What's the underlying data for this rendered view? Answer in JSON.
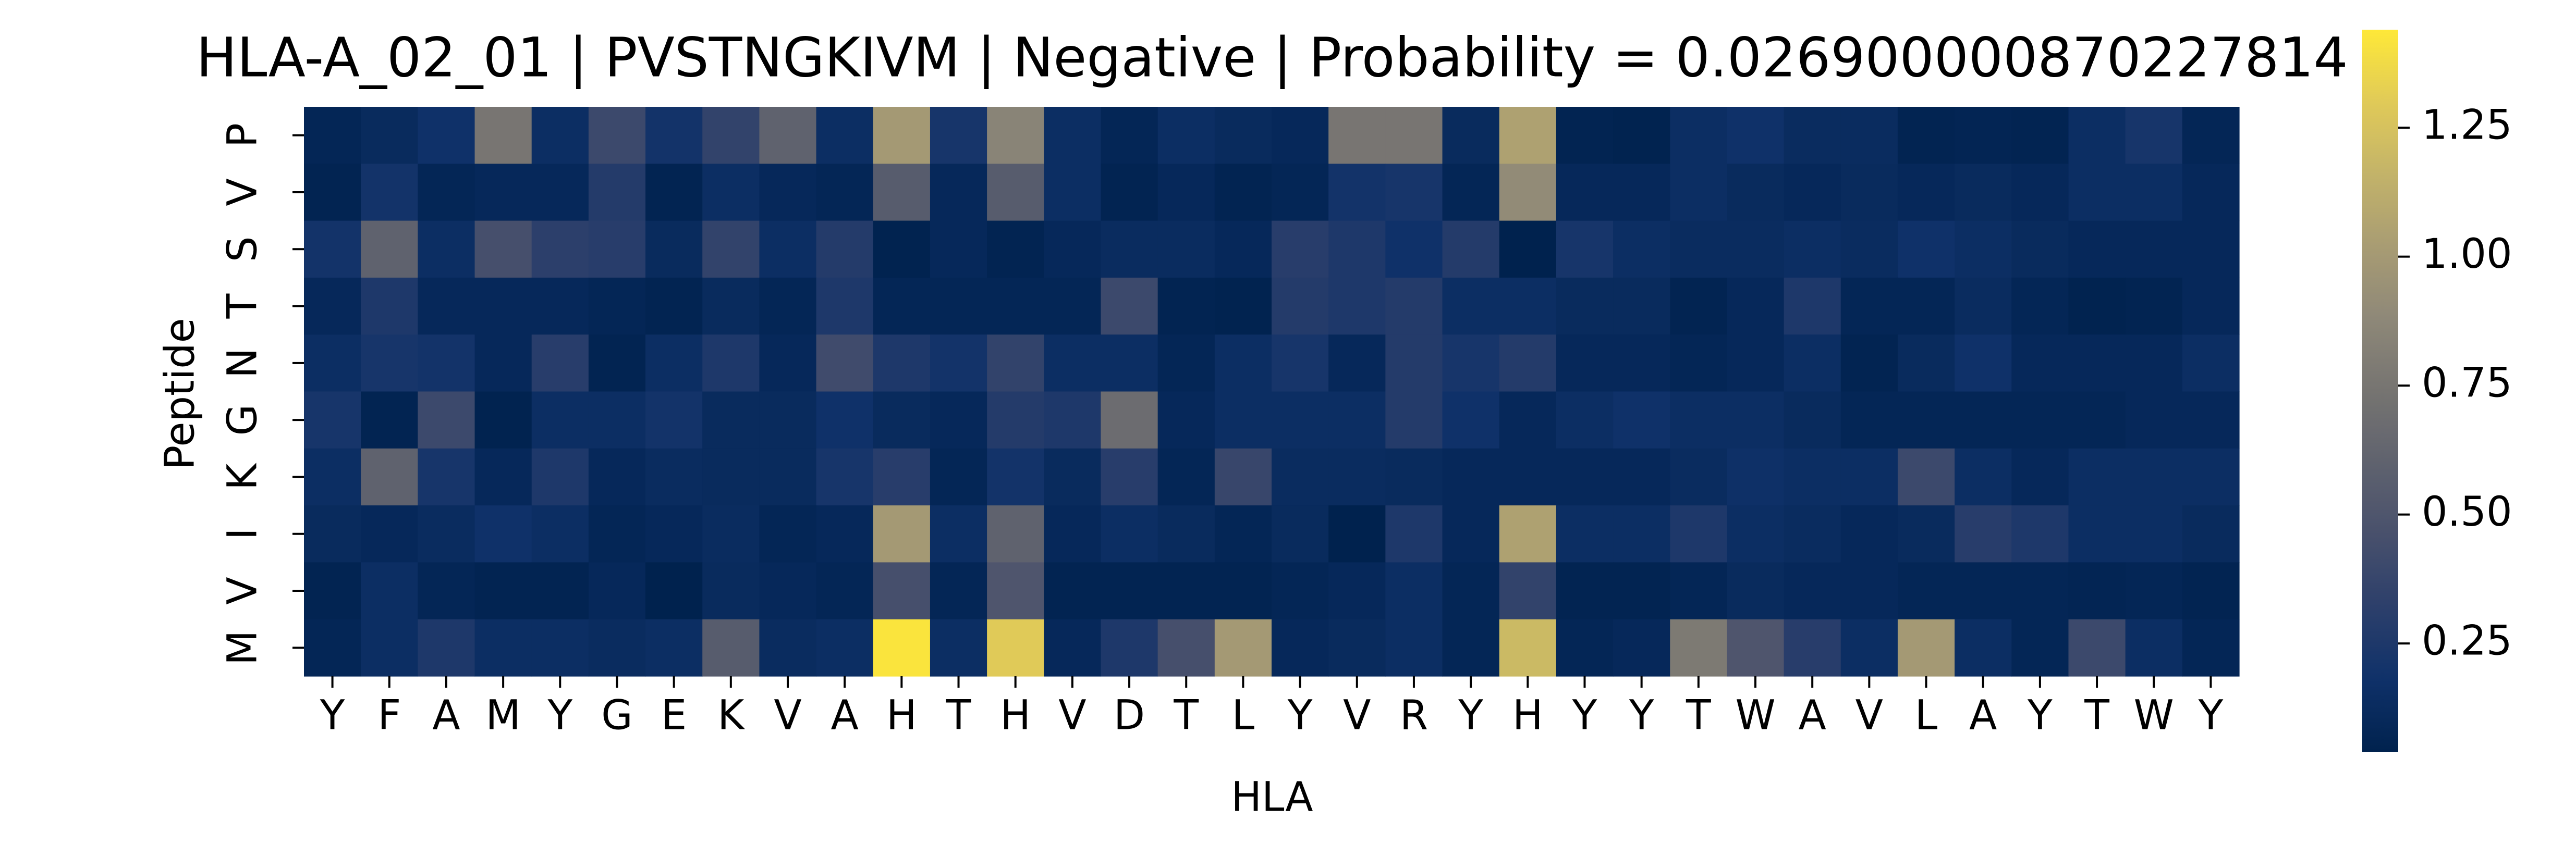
{
  "chart_data": {
    "type": "heatmap",
    "title": "HLA-A_02_01 | PVSTNGKIVM | Negative | Probability = 0.026900000870227814",
    "x_label": "HLA",
    "y_label": "Peptide",
    "x_categories": [
      "Y",
      "F",
      "A",
      "M",
      "Y",
      "G",
      "E",
      "K",
      "V",
      "A",
      "H",
      "T",
      "H",
      "V",
      "D",
      "T",
      "L",
      "Y",
      "V",
      "R",
      "Y",
      "H",
      "Y",
      "Y",
      "T",
      "W",
      "A",
      "V",
      "L",
      "A",
      "Y",
      "T",
      "W",
      "Y"
    ],
    "y_categories": [
      "P",
      "V",
      "S",
      "T",
      "N",
      "G",
      "K",
      "I",
      "V",
      "M"
    ],
    "values": [
      [
        0.08,
        0.12,
        0.18,
        0.75,
        0.15,
        0.4,
        0.2,
        0.35,
        0.6,
        0.15,
        1.0,
        0.22,
        0.85,
        0.15,
        0.08,
        0.15,
        0.12,
        0.1,
        0.75,
        0.75,
        0.12,
        1.05,
        0.06,
        0.05,
        0.15,
        0.18,
        0.13,
        0.13,
        0.06,
        0.07,
        0.06,
        0.15,
        0.22,
        0.08
      ],
      [
        0.06,
        0.2,
        0.08,
        0.1,
        0.1,
        0.28,
        0.06,
        0.15,
        0.1,
        0.08,
        0.55,
        0.1,
        0.55,
        0.15,
        0.06,
        0.1,
        0.06,
        0.08,
        0.2,
        0.22,
        0.08,
        0.9,
        0.1,
        0.1,
        0.15,
        0.12,
        0.1,
        0.12,
        0.1,
        0.12,
        0.1,
        0.15,
        0.15,
        0.1
      ],
      [
        0.2,
        0.6,
        0.15,
        0.45,
        0.32,
        0.3,
        0.12,
        0.35,
        0.15,
        0.28,
        0.05,
        0.1,
        0.06,
        0.1,
        0.13,
        0.13,
        0.1,
        0.3,
        0.25,
        0.18,
        0.28,
        0.04,
        0.22,
        0.15,
        0.13,
        0.13,
        0.15,
        0.13,
        0.18,
        0.15,
        0.12,
        0.1,
        0.1,
        0.1
      ],
      [
        0.1,
        0.25,
        0.1,
        0.1,
        0.1,
        0.08,
        0.06,
        0.12,
        0.08,
        0.25,
        0.08,
        0.08,
        0.08,
        0.08,
        0.4,
        0.06,
        0.05,
        0.28,
        0.25,
        0.28,
        0.15,
        0.15,
        0.12,
        0.12,
        0.06,
        0.1,
        0.25,
        0.08,
        0.08,
        0.13,
        0.08,
        0.05,
        0.06,
        0.1
      ],
      [
        0.15,
        0.22,
        0.2,
        0.1,
        0.3,
        0.06,
        0.15,
        0.25,
        0.1,
        0.42,
        0.25,
        0.2,
        0.35,
        0.15,
        0.15,
        0.08,
        0.15,
        0.22,
        0.1,
        0.28,
        0.22,
        0.28,
        0.1,
        0.1,
        0.08,
        0.1,
        0.15,
        0.06,
        0.12,
        0.18,
        0.1,
        0.1,
        0.1,
        0.15
      ],
      [
        0.22,
        0.06,
        0.4,
        0.05,
        0.15,
        0.15,
        0.2,
        0.12,
        0.12,
        0.18,
        0.12,
        0.1,
        0.28,
        0.25,
        0.68,
        0.1,
        0.15,
        0.15,
        0.15,
        0.28,
        0.18,
        0.1,
        0.15,
        0.18,
        0.15,
        0.15,
        0.12,
        0.08,
        0.08,
        0.08,
        0.08,
        0.08,
        0.1,
        0.1
      ],
      [
        0.15,
        0.6,
        0.22,
        0.1,
        0.25,
        0.1,
        0.13,
        0.12,
        0.12,
        0.22,
        0.3,
        0.08,
        0.2,
        0.12,
        0.3,
        0.08,
        0.38,
        0.13,
        0.13,
        0.12,
        0.1,
        0.1,
        0.1,
        0.1,
        0.13,
        0.17,
        0.15,
        0.15,
        0.4,
        0.15,
        0.1,
        0.15,
        0.15,
        0.15
      ],
      [
        0.12,
        0.1,
        0.13,
        0.18,
        0.15,
        0.08,
        0.1,
        0.13,
        0.08,
        0.1,
        1.0,
        0.15,
        0.6,
        0.1,
        0.15,
        0.12,
        0.08,
        0.12,
        0.04,
        0.25,
        0.1,
        1.05,
        0.15,
        0.15,
        0.25,
        0.15,
        0.13,
        0.1,
        0.12,
        0.3,
        0.25,
        0.15,
        0.15,
        0.12
      ],
      [
        0.06,
        0.15,
        0.08,
        0.06,
        0.06,
        0.1,
        0.04,
        0.12,
        0.1,
        0.08,
        0.45,
        0.08,
        0.5,
        0.06,
        0.06,
        0.06,
        0.06,
        0.08,
        0.1,
        0.15,
        0.08,
        0.35,
        0.06,
        0.06,
        0.08,
        0.12,
        0.1,
        0.1,
        0.08,
        0.08,
        0.08,
        0.07,
        0.08,
        0.06
      ],
      [
        0.08,
        0.15,
        0.25,
        0.15,
        0.15,
        0.13,
        0.15,
        0.55,
        0.13,
        0.15,
        1.42,
        0.15,
        1.3,
        0.1,
        0.25,
        0.45,
        1.0,
        0.1,
        0.12,
        0.15,
        0.08,
        1.2,
        0.08,
        0.1,
        0.78,
        0.5,
        0.3,
        0.15,
        1.0,
        0.15,
        0.08,
        0.4,
        0.15,
        0.08
      ]
    ],
    "colormap": "cividis",
    "colorbar_lim": [
      0.04,
      1.44
    ],
    "colorbar_ticks": [
      0.25,
      {
        "value": 0.5,
        "label": "0.50"
      },
      0.75,
      {
        "value": 1,
        "label": "1.00"
      },
      1.25
    ]
  }
}
